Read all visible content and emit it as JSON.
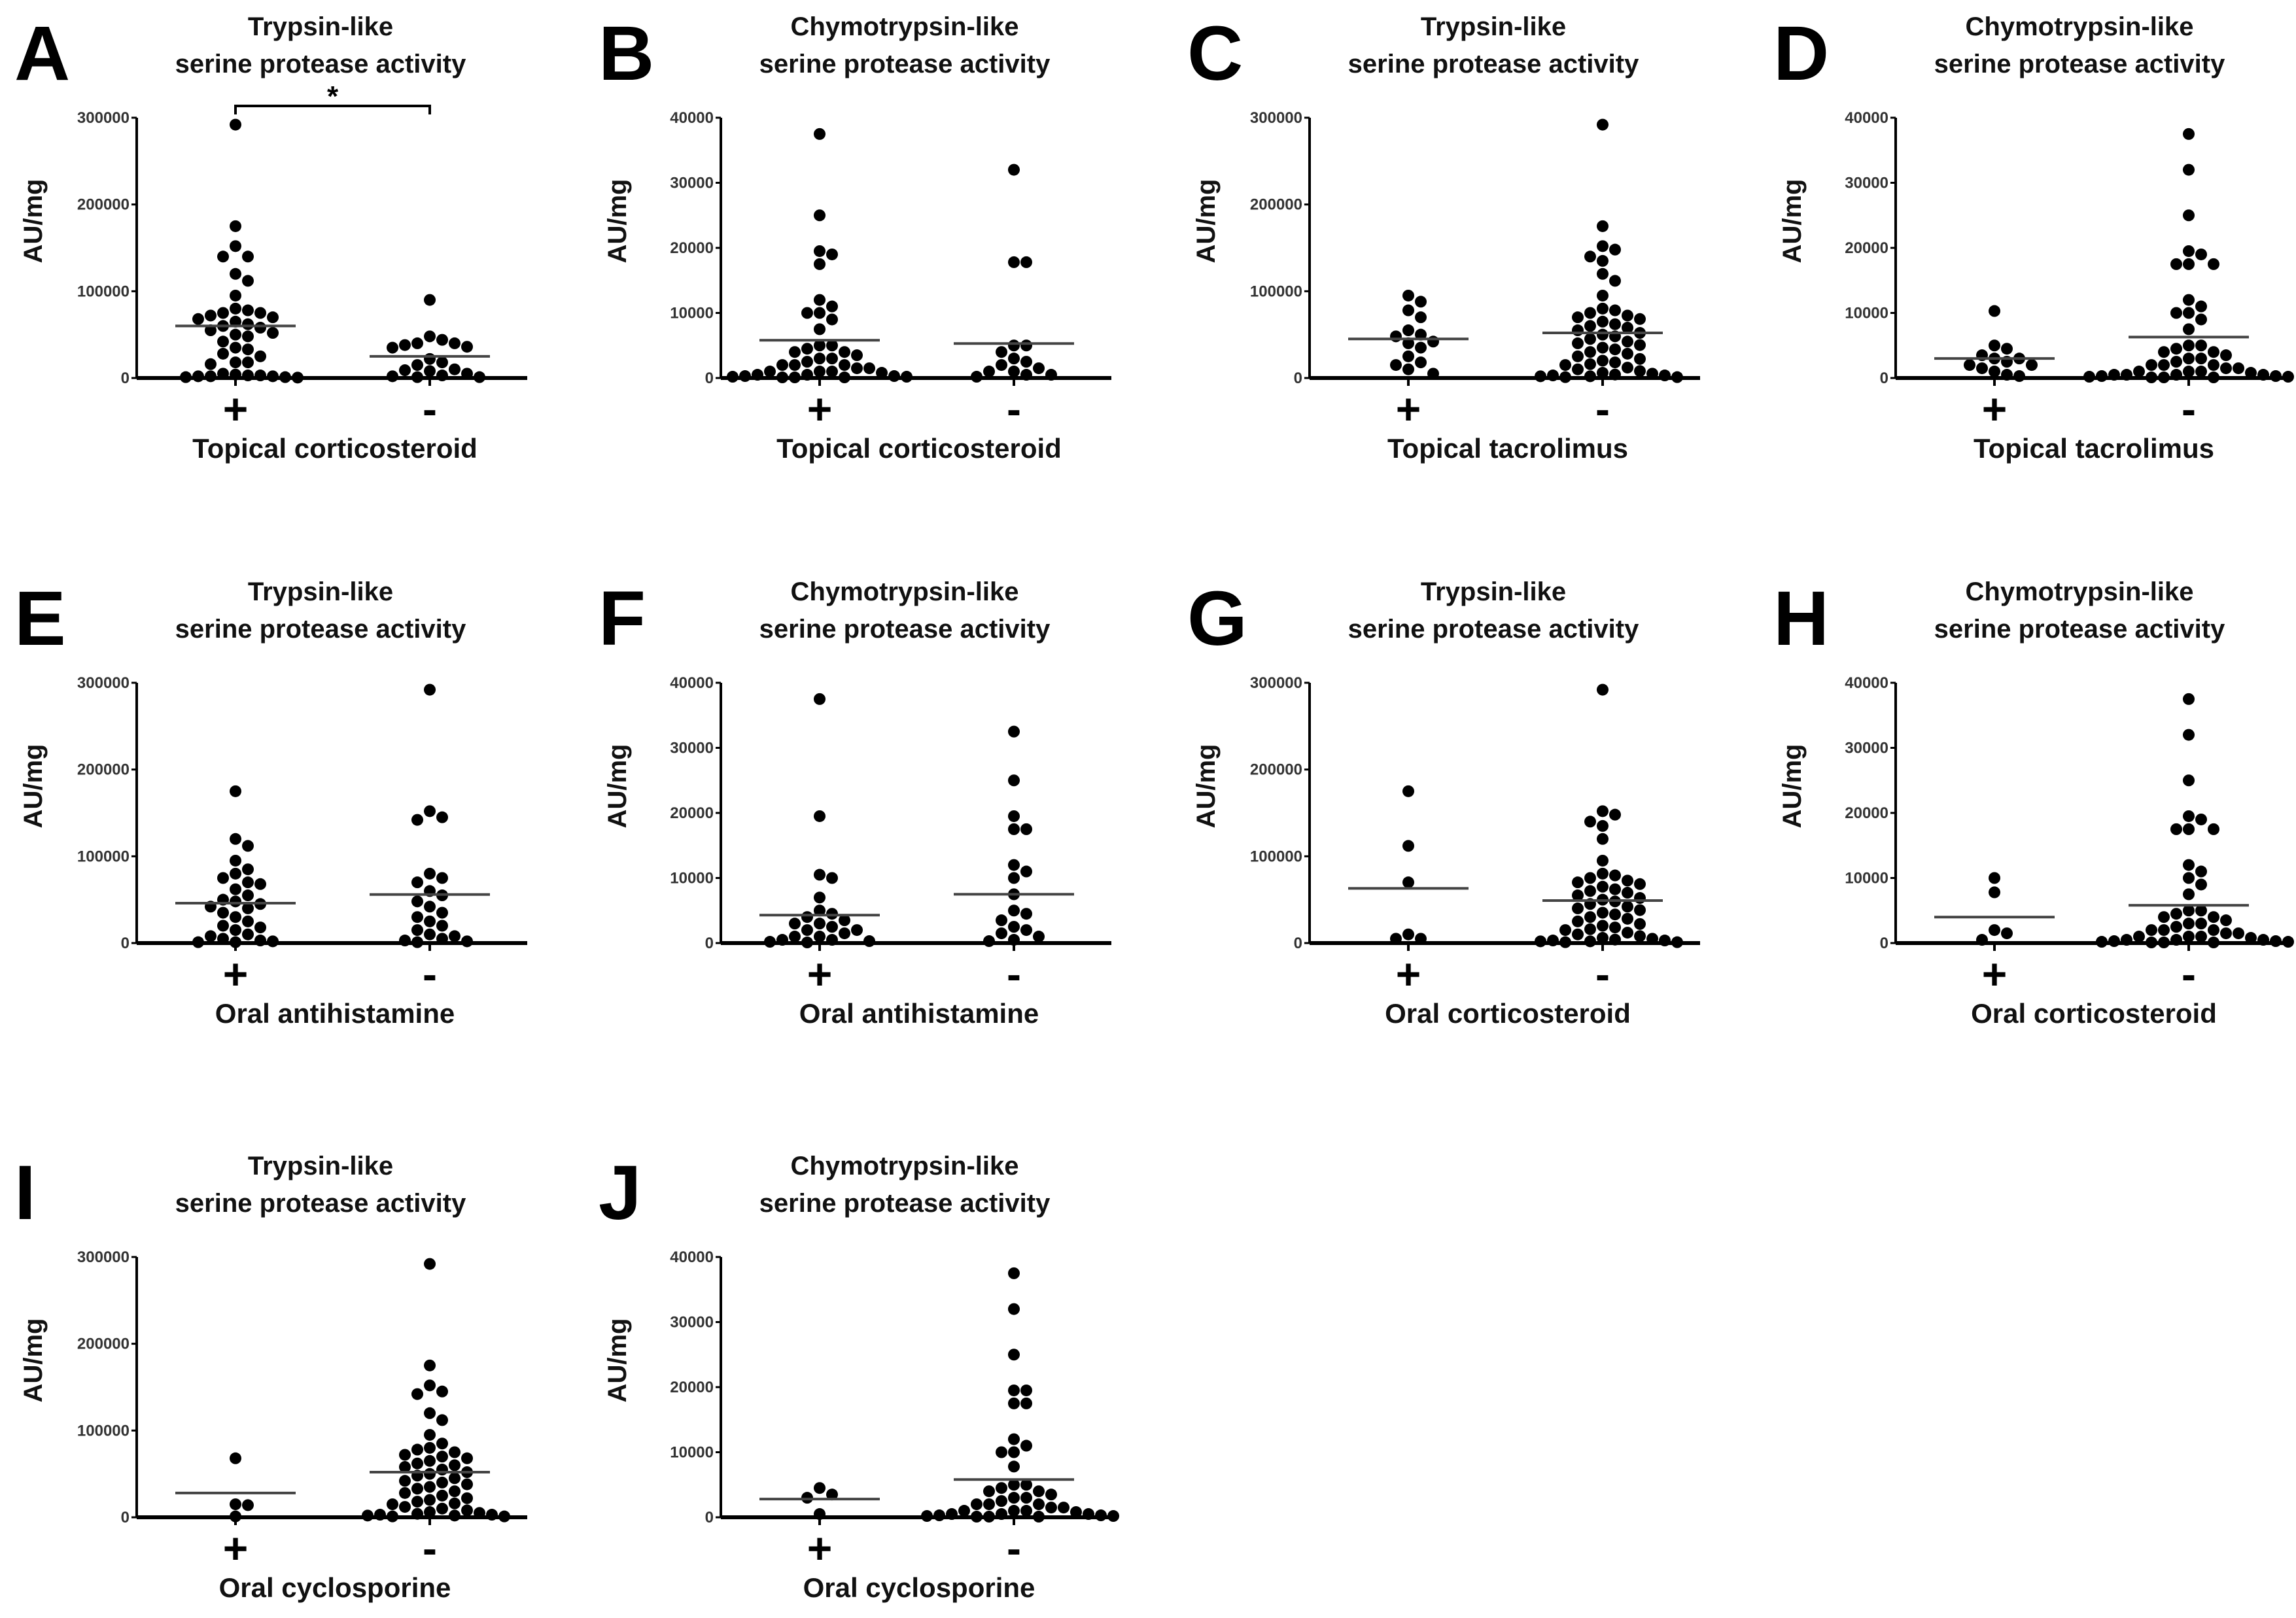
{
  "chart_data": [
    {
      "type": "scatter",
      "panel": "A",
      "title": [
        "Trypsin-like",
        "serine protease activity"
      ],
      "ylabel": "AU/mg",
      "xlabel": "Topical corticosteroid",
      "ylim": [
        0,
        300000
      ],
      "yticks": [
        "0",
        "100000",
        "200000",
        "300000"
      ],
      "tick_values": [
        0,
        100000,
        200000,
        300000
      ],
      "significance": "*",
      "groups": [
        {
          "label": "+",
          "line": 60000,
          "values": [
            292000,
            175000,
            152000,
            140000,
            140000,
            120000,
            112000,
            95000,
            80000,
            78000,
            75000,
            75000,
            72000,
            70000,
            68000,
            65000,
            62000,
            60000,
            58000,
            55000,
            52000,
            50000,
            48000,
            42000,
            35000,
            33000,
            28000,
            25000,
            18000,
            18000,
            16000,
            5000,
            4000,
            3000,
            3000,
            2000,
            2000,
            2000,
            1000,
            1000,
            500
          ]
        },
        {
          "label": "-",
          "line": 25000,
          "values": [
            90000,
            48000,
            44000,
            40000,
            40000,
            38000,
            36000,
            35000,
            22000,
            18000,
            15000,
            10000,
            9000,
            8000,
            5000,
            3000,
            2000,
            1000,
            1000
          ]
        }
      ]
    },
    {
      "type": "scatter",
      "panel": "B",
      "title": [
        "Chymotrypsin-like",
        "serine protease activity"
      ],
      "ylabel": "AU/mg",
      "xlabel": "Topical corticosteroid",
      "ylim": [
        0,
        40000
      ],
      "yticks": [
        "0",
        "10000",
        "20000",
        "30000",
        "40000"
      ],
      "tick_values": [
        0,
        10000,
        20000,
        30000,
        40000
      ],
      "groups": [
        {
          "label": "+",
          "line": 5800,
          "values": [
            37500,
            25000,
            19500,
            19000,
            17500,
            12000,
            11000,
            10000,
            10000,
            9000,
            7500,
            5000,
            5000,
            4500,
            4000,
            4000,
            3500,
            3000,
            3000,
            2500,
            2000,
            2000,
            2000,
            1500,
            1500,
            1000,
            1000,
            1000,
            800,
            500,
            500,
            300,
            300,
            200,
            200,
            100,
            100,
            100
          ]
        },
        {
          "label": "-",
          "line": 5300,
          "values": [
            32000,
            17800,
            17800,
            5000,
            5000,
            4000,
            3000,
            2500,
            2000,
            1500,
            1000,
            1000,
            500,
            500,
            200
          ]
        }
      ]
    },
    {
      "type": "scatter",
      "panel": "C",
      "title": [
        "Trypsin-like",
        "serine protease activity"
      ],
      "ylabel": "AU/mg",
      "xlabel": "Topical tacrolimus",
      "ylim": [
        0,
        300000
      ],
      "yticks": [
        "0",
        "100000",
        "200000",
        "300000"
      ],
      "tick_values": [
        0,
        100000,
        200000,
        300000
      ],
      "groups": [
        {
          "label": "+",
          "line": 45000,
          "values": [
            95000,
            88000,
            78000,
            70000,
            55000,
            50000,
            48000,
            42000,
            40000,
            35000,
            25000,
            18000,
            15000,
            10000,
            5000
          ]
        },
        {
          "label": "-",
          "line": 52000,
          "values": [
            292000,
            175000,
            152000,
            148000,
            140000,
            135000,
            120000,
            112000,
            95000,
            80000,
            78000,
            75000,
            72000,
            70000,
            68000,
            65000,
            62000,
            60000,
            58000,
            55000,
            52000,
            50000,
            48000,
            45000,
            42000,
            40000,
            38000,
            35000,
            33000,
            30000,
            28000,
            25000,
            22000,
            20000,
            18000,
            16000,
            15000,
            12000,
            10000,
            8000,
            6000,
            5000,
            4000,
            3000,
            3000,
            2000,
            2000,
            1000,
            1000
          ]
        }
      ]
    },
    {
      "type": "scatter",
      "panel": "D",
      "title": [
        "Chymotrypsin-like",
        "serine protease activity"
      ],
      "ylabel": "AU/mg",
      "xlabel": "Topical tacrolimus",
      "ylim": [
        0,
        40000
      ],
      "yticks": [
        "0",
        "10000",
        "20000",
        "30000",
        "40000"
      ],
      "tick_values": [
        0,
        10000,
        20000,
        30000,
        40000
      ],
      "groups": [
        {
          "label": "+",
          "line": 3000,
          "values": [
            10300,
            5000,
            4500,
            3500,
            3000,
            3000,
            2500,
            2000,
            2000,
            1500,
            1000,
            500,
            300
          ]
        },
        {
          "label": "-",
          "line": 6300,
          "values": [
            37500,
            32000,
            25000,
            19500,
            19000,
            17500,
            17500,
            17500,
            12000,
            11000,
            10000,
            10000,
            9000,
            7500,
            5000,
            5000,
            4500,
            4000,
            4000,
            3500,
            3000,
            3000,
            2500,
            2000,
            2000,
            2000,
            1500,
            1500,
            1000,
            1000,
            1000,
            800,
            500,
            500,
            500,
            500,
            300,
            300,
            200,
            200,
            100,
            100,
            100
          ]
        }
      ]
    },
    {
      "type": "scatter",
      "panel": "E",
      "title": [
        "Trypsin-like",
        "serine protease activity"
      ],
      "ylabel": "AU/mg",
      "xlabel": "Oral antihistamine",
      "ylim": [
        0,
        300000
      ],
      "yticks": [
        "0",
        "100000",
        "200000",
        "300000"
      ],
      "tick_values": [
        0,
        100000,
        200000,
        300000
      ],
      "groups": [
        {
          "label": "+",
          "line": 46000,
          "values": [
            175000,
            120000,
            112000,
            95000,
            85000,
            80000,
            75000,
            70000,
            68000,
            62000,
            55000,
            50000,
            48000,
            45000,
            42000,
            40000,
            35000,
            30000,
            25000,
            20000,
            18000,
            15000,
            10000,
            8000,
            5000,
            3000,
            2000,
            1000,
            1000
          ]
        },
        {
          "label": "-",
          "line": 56000,
          "values": [
            292000,
            152000,
            145000,
            142000,
            80000,
            75000,
            70000,
            60000,
            55000,
            48000,
            42000,
            35000,
            30000,
            25000,
            20000,
            15000,
            10000,
            8000,
            5000,
            3000,
            2000,
            1000
          ]
        }
      ]
    },
    {
      "type": "scatter",
      "panel": "F",
      "title": [
        "Chymotrypsin-like",
        "serine protease activity"
      ],
      "ylabel": "AU/mg",
      "xlabel": "Oral antihistamine",
      "ylim": [
        0,
        40000
      ],
      "yticks": [
        "0",
        "10000",
        "20000",
        "30000",
        "40000"
      ],
      "tick_values": [
        0,
        10000,
        20000,
        30000,
        40000
      ],
      "groups": [
        {
          "label": "+",
          "line": 4300,
          "values": [
            37500,
            19500,
            10500,
            10000,
            7000,
            5000,
            4500,
            4000,
            3500,
            3000,
            3000,
            2500,
            2000,
            2000,
            1500,
            1000,
            1000,
            500,
            500,
            300,
            200,
            100
          ]
        },
        {
          "label": "-",
          "line": 7500,
          "values": [
            32500,
            25000,
            19500,
            17500,
            17500,
            12000,
            11000,
            10000,
            7500,
            5000,
            4500,
            3500,
            2500,
            2000,
            1500,
            1000,
            500,
            300
          ]
        }
      ]
    },
    {
      "type": "scatter",
      "panel": "G",
      "title": [
        "Trypsin-like",
        "serine protease activity"
      ],
      "ylabel": "AU/mg",
      "xlabel": "Oral corticosteroid",
      "ylim": [
        0,
        300000
      ],
      "yticks": [
        "0",
        "100000",
        "200000",
        "300000"
      ],
      "tick_values": [
        0,
        100000,
        200000,
        300000
      ],
      "groups": [
        {
          "label": "+",
          "line": 63000,
          "values": [
            175000,
            112000,
            70000,
            10000,
            5000,
            5000
          ]
        },
        {
          "label": "-",
          "line": 49000,
          "values": [
            292000,
            152000,
            148000,
            140000,
            135000,
            120000,
            95000,
            80000,
            78000,
            75000,
            72000,
            70000,
            68000,
            65000,
            62000,
            60000,
            58000,
            55000,
            52000,
            50000,
            48000,
            45000,
            42000,
            40000,
            38000,
            35000,
            33000,
            30000,
            28000,
            25000,
            22000,
            20000,
            18000,
            16000,
            15000,
            12000,
            10000,
            8000,
            6000,
            5000,
            4000,
            3000,
            3000,
            2000,
            2000,
            1000,
            1000
          ]
        }
      ]
    },
    {
      "type": "scatter",
      "panel": "H",
      "title": [
        "Chymotrypsin-like",
        "serine protease activity"
      ],
      "ylabel": "AU/mg",
      "xlabel": "Oral corticosteroid",
      "ylim": [
        0,
        40000
      ],
      "yticks": [
        "0",
        "10000",
        "20000",
        "30000",
        "40000"
      ],
      "tick_values": [
        0,
        10000,
        20000,
        30000,
        40000
      ],
      "groups": [
        {
          "label": "+",
          "line": 4000,
          "values": [
            10000,
            7800,
            2000,
            1500,
            500
          ]
        },
        {
          "label": "-",
          "line": 5800,
          "values": [
            37500,
            32000,
            25000,
            19500,
            19000,
            17500,
            17500,
            17500,
            12000,
            11000,
            10000,
            9000,
            7500,
            5000,
            5000,
            4500,
            4000,
            4000,
            3500,
            3000,
            3000,
            2500,
            2000,
            2000,
            2000,
            1500,
            1500,
            1000,
            1000,
            1000,
            800,
            500,
            500,
            500,
            300,
            300,
            200,
            200,
            100,
            100,
            100
          ]
        }
      ]
    },
    {
      "type": "scatter",
      "panel": "I",
      "title": [
        "Trypsin-like",
        "serine protease activity"
      ],
      "ylabel": "AU/mg",
      "xlabel": "Oral cyclosporine",
      "ylim": [
        0,
        300000
      ],
      "yticks": [
        "0",
        "100000",
        "200000",
        "300000"
      ],
      "tick_values": [
        0,
        100000,
        200000,
        300000
      ],
      "groups": [
        {
          "label": "+",
          "line": 28000,
          "values": [
            68000,
            15000,
            14000,
            1000
          ]
        },
        {
          "label": "-",
          "line": 52000,
          "values": [
            292000,
            175000,
            152000,
            145000,
            142000,
            120000,
            112000,
            95000,
            85000,
            80000,
            78000,
            75000,
            72000,
            70000,
            68000,
            65000,
            62000,
            60000,
            58000,
            55000,
            52000,
            50000,
            48000,
            45000,
            42000,
            40000,
            38000,
            35000,
            33000,
            30000,
            28000,
            25000,
            22000,
            20000,
            18000,
            16000,
            15000,
            12000,
            10000,
            8000,
            6000,
            5000,
            4000,
            3000,
            3000,
            2000,
            2000,
            1000,
            1000
          ]
        }
      ]
    },
    {
      "type": "scatter",
      "panel": "J",
      "title": [
        "Chymotrypsin-like",
        "serine protease activity"
      ],
      "ylabel": "AU/mg",
      "xlabel": "Oral cyclosporine",
      "ylim": [
        0,
        40000
      ],
      "yticks": [
        "0",
        "10000",
        "20000",
        "30000",
        "40000"
      ],
      "tick_values": [
        0,
        10000,
        20000,
        30000,
        40000
      ],
      "groups": [
        {
          "label": "+",
          "line": 2800,
          "values": [
            4500,
            3500,
            3000,
            500
          ]
        },
        {
          "label": "-",
          "line": 5800,
          "values": [
            37500,
            32000,
            25000,
            19500,
            19500,
            17500,
            17500,
            12000,
            11000,
            10000,
            10000,
            7800,
            5000,
            5000,
            4500,
            4000,
            4000,
            3500,
            3000,
            3000,
            2500,
            2000,
            2000,
            2000,
            1500,
            1500,
            1000,
            1000,
            1000,
            800,
            500,
            500,
            500,
            300,
            300,
            200,
            200,
            100,
            100,
            100
          ]
        }
      ]
    }
  ]
}
